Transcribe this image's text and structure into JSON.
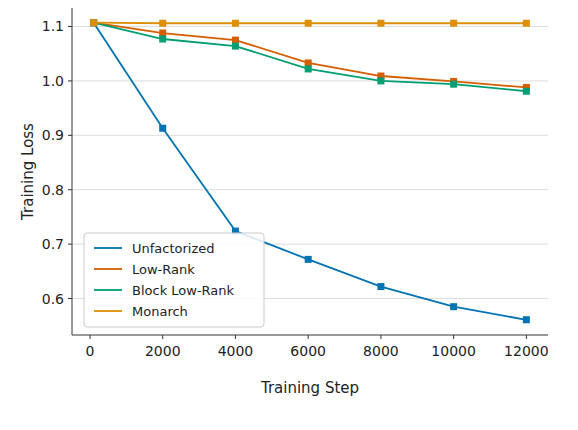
{
  "chart_data": {
    "type": "line",
    "x_label": "Training Step",
    "y_label": "Training Loss",
    "x": [
      100,
      2000,
      4000,
      6000,
      8000,
      10000,
      12000
    ],
    "series": [
      {
        "name": "Unfactorized",
        "color": "#0173b2",
        "marker": "square",
        "values": [
          1.107,
          0.913,
          0.724,
          0.672,
          0.622,
          0.585,
          0.561
        ]
      },
      {
        "name": "Low-Rank",
        "color": "#d55e00",
        "marker": "square",
        "values": [
          1.107,
          1.088,
          1.075,
          1.033,
          1.009,
          0.999,
          0.988
        ]
      },
      {
        "name": "Block Low-Rank",
        "color": "#029e73",
        "marker": "square",
        "values": [
          1.107,
          1.077,
          1.064,
          1.022,
          1.0,
          0.994,
          0.981
        ]
      },
      {
        "name": "Monarch",
        "color": "#de8f05",
        "marker": "square",
        "values": [
          1.107,
          1.106,
          1.106,
          1.106,
          1.106,
          1.106,
          1.106
        ]
      }
    ],
    "xlim": [
      -495,
      12595
    ],
    "ylim": [
      0.533,
      1.134
    ],
    "xticks": [
      0,
      2000,
      4000,
      6000,
      8000,
      10000,
      12000
    ],
    "yticks": [
      {
        "value": 0.6,
        "label": "0.6"
      },
      {
        "value": 0.7,
        "label": "0.7"
      },
      {
        "value": 0.8,
        "label": "0.8"
      },
      {
        "value": 0.9,
        "label": "0.9"
      },
      {
        "value": 1.0,
        "label": "1.0"
      },
      {
        "value": 1.1,
        "label": "1.1"
      }
    ],
    "grid": true,
    "legend": "lower left"
  }
}
